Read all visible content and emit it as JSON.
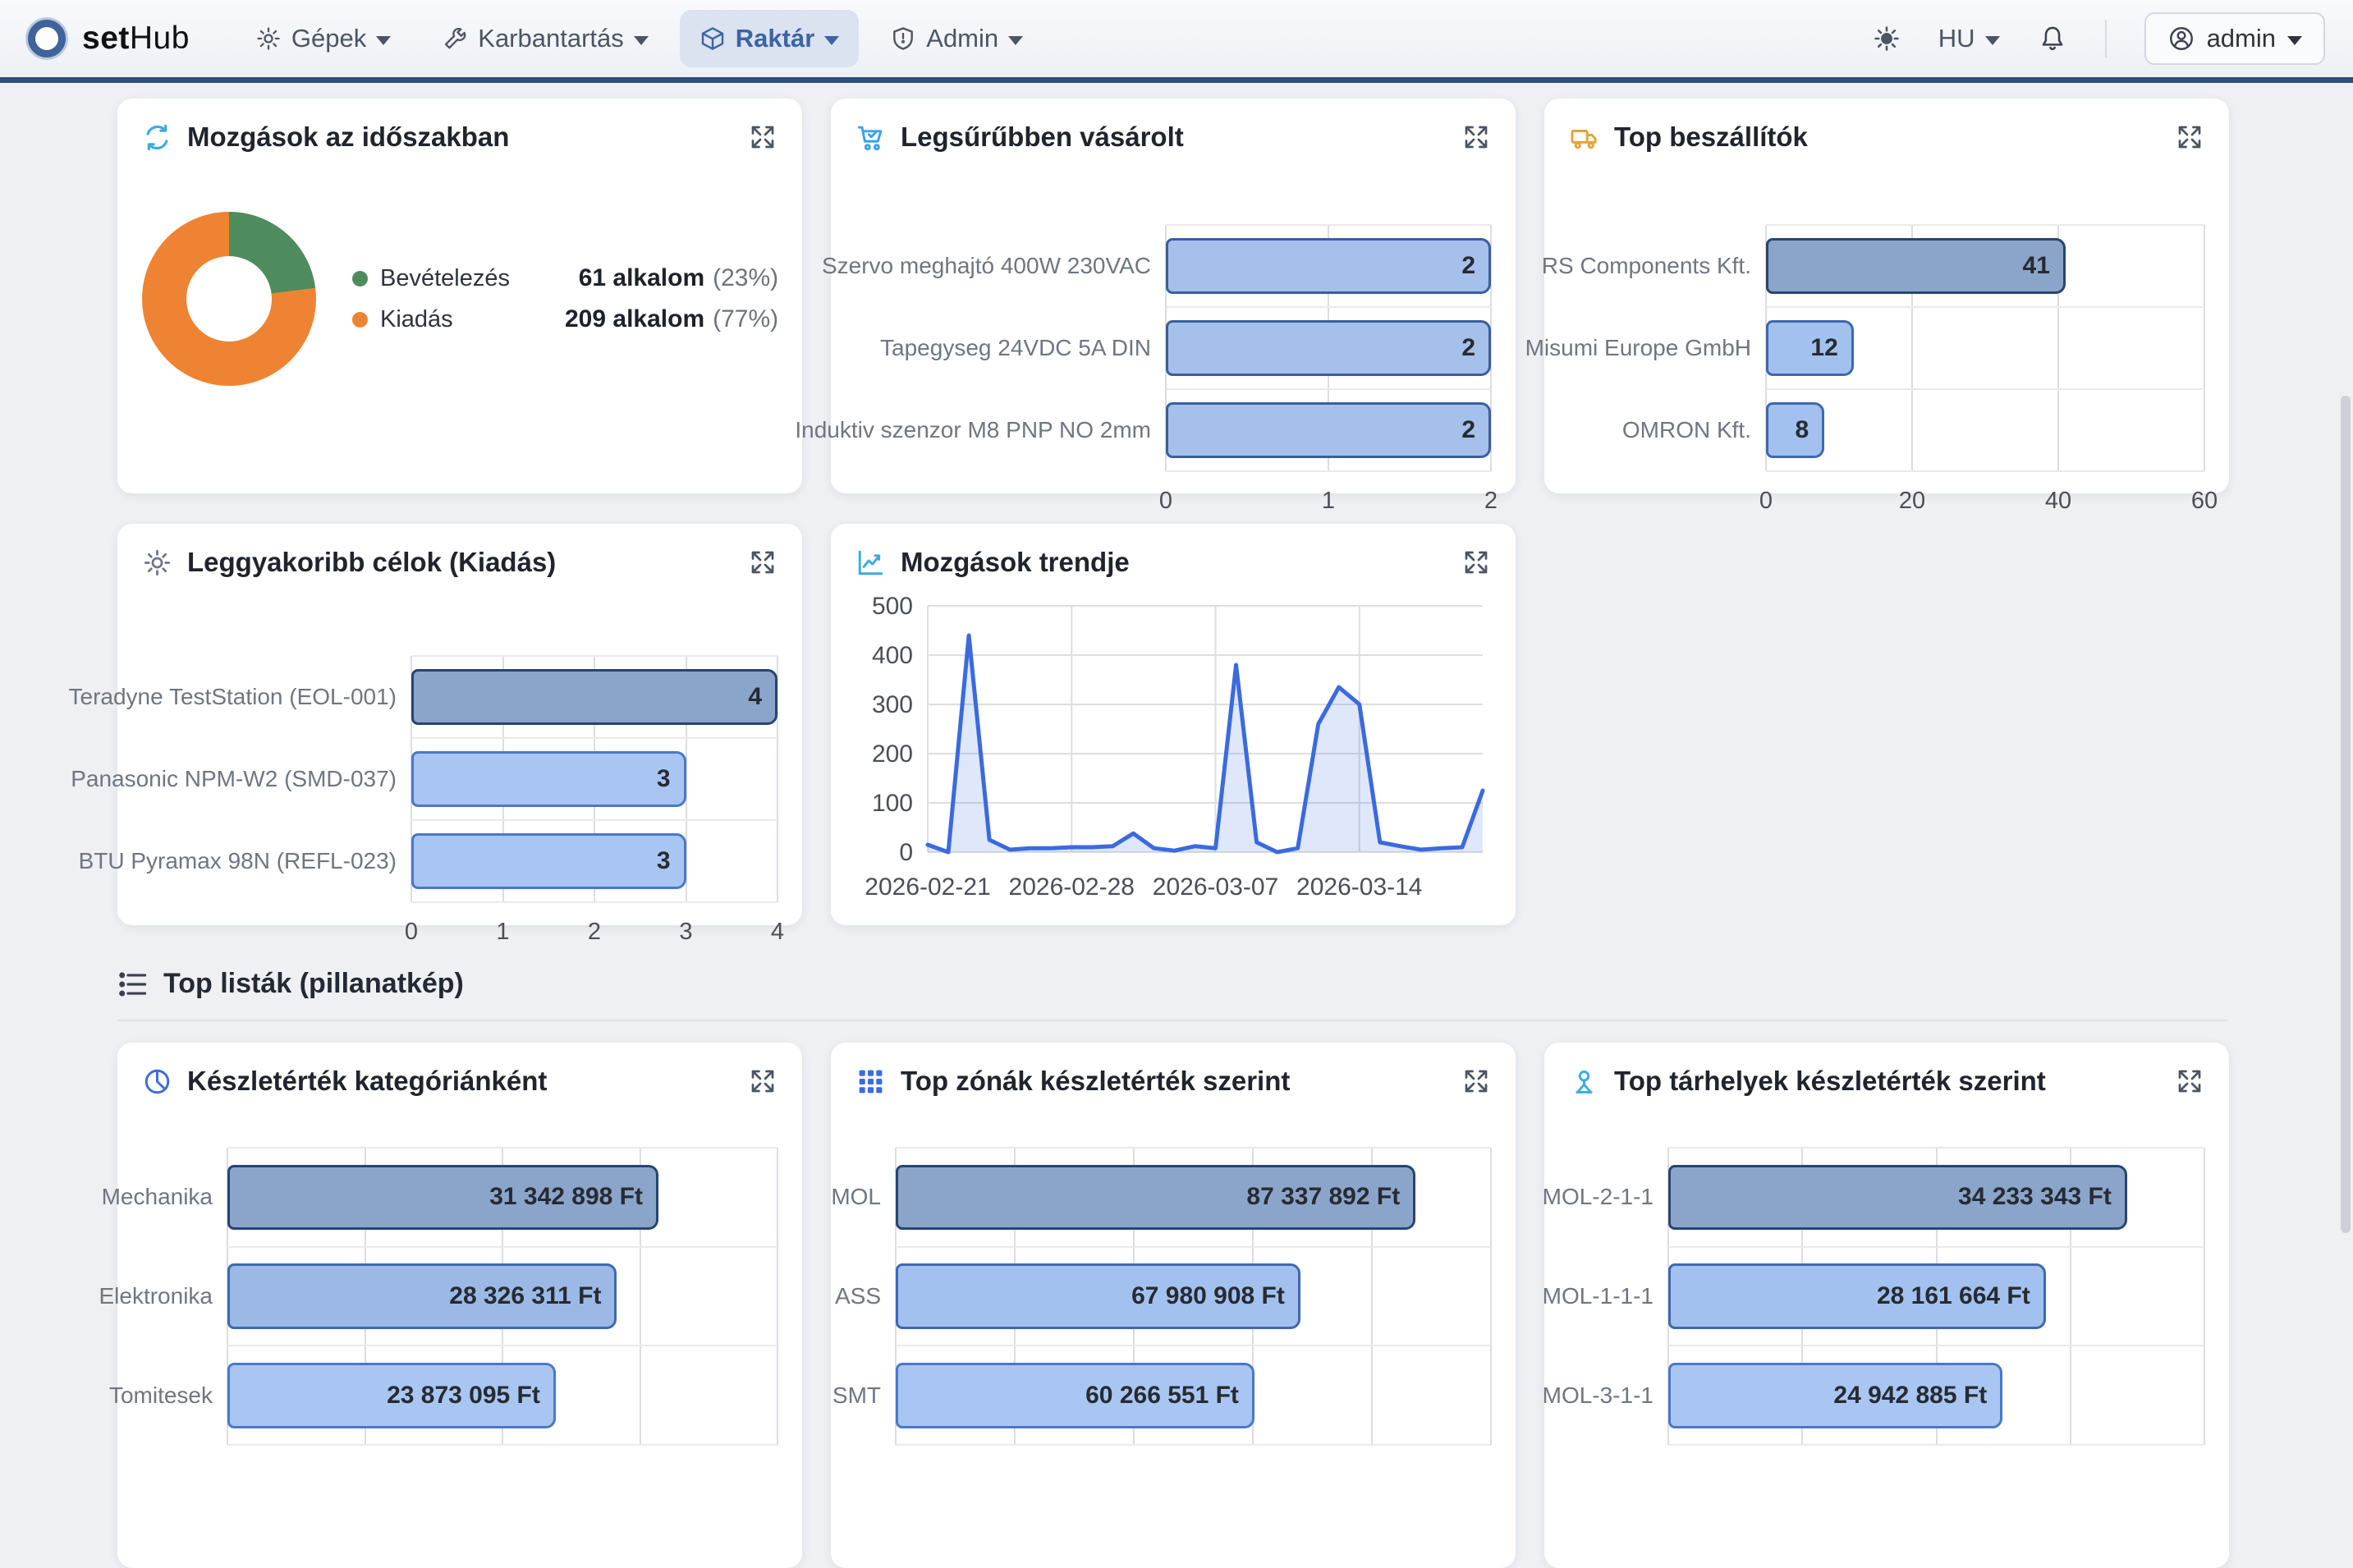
{
  "navbar": {
    "brand_bold": "set",
    "brand_rest": "Hub",
    "items": [
      {
        "label": "Gépek",
        "icon": "gear"
      },
      {
        "label": "Karbantartás",
        "icon": "wrench"
      },
      {
        "label": "Raktár",
        "icon": "box",
        "active": true
      },
      {
        "label": "Admin",
        "icon": "shield"
      }
    ],
    "language": "HU",
    "user": "admin",
    "active_color": "#3c64a4",
    "active_bg": "#dbe2f0"
  },
  "section_title": "Top listák (pillanatkép)",
  "movements_donut": {
    "title": "Mozgások az időszakban",
    "legend": [
      {
        "label": "Bevételezés",
        "count_label": "61 alkalom",
        "percent_label": "(23%)",
        "value": 61,
        "percent": 23,
        "color": "#4e8c5e"
      },
      {
        "label": "Kiadás",
        "count_label": "209 alkalom",
        "percent_label": "(77%)",
        "value": 209,
        "percent": 77,
        "color": "#ee8433"
      }
    ]
  },
  "top_purchased": {
    "title": "Legsűrűbben vásárolt",
    "xmax": 2,
    "grid_divisions": 2,
    "ticks": [
      "0",
      "1",
      "2"
    ],
    "bars": [
      {
        "label": "Szervo meghajtó 400W 230VAC",
        "value": 2,
        "value_label": "2",
        "fill": "#a5c0ea",
        "stroke": "#3a5f9f"
      },
      {
        "label": "Tapegyseg 24VDC 5A DIN",
        "value": 2,
        "value_label": "2",
        "fill": "#a5c0ea",
        "stroke": "#3a5f9f"
      },
      {
        "label": "Induktiv szenzor M8 PNP NO 2mm",
        "value": 2,
        "value_label": "2",
        "fill": "#a5c0ea",
        "stroke": "#3a5f9f"
      }
    ]
  },
  "top_suppliers": {
    "title": "Top beszállítók",
    "xmax": 60,
    "grid_divisions": 3,
    "ticks": [
      "0",
      "20",
      "40",
      "60"
    ],
    "bars": [
      {
        "label": "RS Components Kft.",
        "value": 41,
        "value_label": "41",
        "fill": "#8ba5ca",
        "stroke": "#27456f"
      },
      {
        "label": "Misumi Europe GmbH",
        "value": 12,
        "value_label": "12",
        "fill": "#a3c1ee",
        "stroke": "#3e68b0"
      },
      {
        "label": "OMRON Kft.",
        "value": 8,
        "value_label": "8",
        "fill": "#a3c1ee",
        "stroke": "#3e68b0"
      }
    ]
  },
  "top_destinations": {
    "title": "Leggyakoribb célok (Kiadás)",
    "xmax": 4,
    "grid_divisions": 4,
    "ticks": [
      "0",
      "1",
      "2",
      "3",
      "4"
    ],
    "bars": [
      {
        "label": "Teradyne TestStation (EOL-001)",
        "value": 4,
        "value_label": "4",
        "fill": "#8ba5ca",
        "stroke": "#27456f"
      },
      {
        "label": "Panasonic NPM-W2 (SMD-037)",
        "value": 3,
        "value_label": "3",
        "fill": "#a9c6f2",
        "stroke": "#4a78c8"
      },
      {
        "label": "BTU Pyramax 98N (REFL-023)",
        "value": 3,
        "value_label": "3",
        "fill": "#a9c6f2",
        "stroke": "#4a78c8"
      }
    ]
  },
  "movements_trend": {
    "title": "Mozgások trendje",
    "type": "line",
    "line_color": "#3b6adf",
    "area_color": "rgba(59,106,223,0.16)",
    "ylim": [
      0,
      500
    ],
    "yticks": [
      0,
      100,
      200,
      300,
      400,
      500
    ],
    "xtick_labels": [
      "2026-02-21",
      "2026-02-28",
      "2026-03-07",
      "2026-03-14"
    ],
    "xtick_index": [
      0,
      7,
      14,
      21
    ],
    "values": [
      15,
      0,
      440,
      25,
      5,
      8,
      8,
      10,
      10,
      12,
      38,
      8,
      3,
      12,
      8,
      380,
      20,
      0,
      8,
      260,
      335,
      300,
      20,
      12,
      5,
      8,
      10,
      125
    ]
  },
  "stock_by_category": {
    "title": "Készletérték kategóriánként",
    "xmax": 40000000,
    "grid_divisions": 4,
    "ticks": [],
    "bars": [
      {
        "label": "Mechanika",
        "value": 31342898,
        "value_label": "31 342 898 Ft",
        "fill": "#8ba5ca",
        "stroke": "#27456f"
      },
      {
        "label": "Elektronika",
        "value": 28326311,
        "value_label": "28 326 311 Ft",
        "fill": "#9cb9e6",
        "stroke": "#3e68b0"
      },
      {
        "label": "Tomitesek",
        "value": 23873095,
        "value_label": "23 873 095 Ft",
        "fill": "#a9c6f2",
        "stroke": "#4a78c8"
      }
    ]
  },
  "top_zones": {
    "title": "Top zónák készletérték szerint",
    "xmax": 100000000,
    "grid_divisions": 5,
    "ticks": [],
    "bars": [
      {
        "label": "MOL",
        "value": 87337892,
        "value_label": "87 337 892 Ft",
        "fill": "#8ba5ca",
        "stroke": "#27456f"
      },
      {
        "label": "ASS",
        "value": 67980908,
        "value_label": "67 980 908 Ft",
        "fill": "#a3c1ee",
        "stroke": "#3e68b0"
      },
      {
        "label": "SMT",
        "value": 60266551,
        "value_label": "60 266 551 Ft",
        "fill": "#a9c6f2",
        "stroke": "#4a78c8"
      }
    ]
  },
  "top_locations": {
    "title": "Top tárhelyek készletérték szerint",
    "xmax": 40000000,
    "grid_divisions": 4,
    "ticks": [],
    "bars": [
      {
        "label": "MOL-2-1-1",
        "value": 34233343,
        "value_label": "34 233 343 Ft",
        "fill": "#8ba5ca",
        "stroke": "#27456f"
      },
      {
        "label": "MOL-1-1-1",
        "value": 28161664,
        "value_label": "28 161 664 Ft",
        "fill": "#a3c1ee",
        "stroke": "#3e68b0"
      },
      {
        "label": "MOL-3-1-1",
        "value": 24942885,
        "value_label": "24 942 885 Ft",
        "fill": "#a9c6f2",
        "stroke": "#4a78c8"
      }
    ]
  }
}
